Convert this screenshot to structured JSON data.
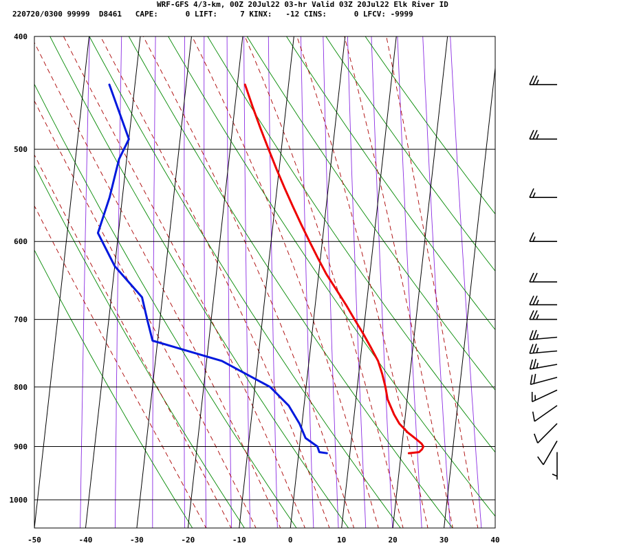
{
  "header": {
    "line1": "WRF-GFS 4/3-km, 00Z 20Jul22 03-hr Valid 03Z 20Jul22 Elk River ID",
    "line2": "220720/0300 99999  D8461   CAPE:      0 LIFT:     7 KINX:   -12 CINS:      0 LFCV: -9999"
  },
  "colors": {
    "temperature": "#ee0000",
    "dewpoint": "#0018dd",
    "dry_adiabat": "#008800",
    "moist_adiabat": "#aa0000",
    "mixing_ratio": "#8a2be2",
    "grid": "#000000"
  },
  "chart_data": {
    "type": "line",
    "subtype": "skew-t log-p sounding",
    "x_axis": {
      "range": [
        -50,
        40
      ],
      "ticks": [
        -50,
        -40,
        -30,
        -20,
        -10,
        0,
        10,
        20,
        30,
        40
      ],
      "tick_labels": [
        "-50",
        "-40",
        "-30",
        "-20",
        "-10",
        "0",
        "10",
        "20",
        "30",
        "40"
      ]
    },
    "y_axis": {
      "scale": "log",
      "range": [
        1040,
        400
      ],
      "ticks": [
        400,
        500,
        600,
        700,
        800,
        900,
        1000
      ],
      "tick_labels": [
        "400",
        "500",
        "600",
        "700",
        "800",
        "900",
        "1000"
      ]
    },
    "grid": true,
    "dry_adiabats_theta_K": [
      250,
      260,
      270,
      280,
      290,
      300,
      310,
      320,
      330,
      340,
      350,
      360
    ],
    "moist_adiabats_thetaw_C": [
      -20,
      -15,
      -10,
      -5,
      0,
      5,
      10,
      15,
      20,
      25,
      30,
      35
    ],
    "mixing_ratio_lines_gkg": [
      0.1,
      0.2,
      0.4,
      0.7,
      1,
      1.5,
      2,
      3,
      5,
      7,
      10,
      14,
      20,
      28,
      40
    ],
    "series": [
      {
        "key": "temperature",
        "p": [
          912,
          910,
          905,
          900,
          895,
          888,
          875,
          860,
          845,
          820,
          800,
          780,
          760,
          740,
          720,
          700,
          680,
          660,
          640,
          620,
          600,
          580,
          560,
          540,
          520,
          500,
          480,
          460,
          440
        ],
        "t": [
          21.5,
          23.5,
          24.0,
          24.2,
          23.8,
          22.8,
          20.8,
          19.0,
          17.8,
          16.2,
          15.5,
          14.6,
          13.5,
          11.8,
          10.0,
          8.0,
          6.0,
          3.8,
          1.5,
          -0.5,
          -2.5,
          -4.5,
          -6.5,
          -8.5,
          -10.5,
          -12.5,
          -14.5,
          -16.5,
          -18.5
        ]
      },
      {
        "key": "dewpoint",
        "p": [
          912,
          910,
          900,
          885,
          860,
          830,
          800,
          760,
          730,
          700,
          670,
          630,
          590,
          550,
          510,
          490,
          440
        ],
        "t": [
          5.5,
          4.0,
          3.5,
          1.0,
          -0.5,
          -3.0,
          -7.0,
          -17.0,
          -31.0,
          -32.5,
          -34.0,
          -40.0,
          -44.0,
          -42.5,
          -41.5,
          -40.0,
          -45.0
        ]
      }
    ],
    "wind_barbs": [
      {
        "p": 440,
        "spd_kt": 25,
        "dir_deg": 270
      },
      {
        "p": 490,
        "spd_kt": 25,
        "dir_deg": 270
      },
      {
        "p": 550,
        "spd_kt": 15,
        "dir_deg": 270
      },
      {
        "p": 600,
        "spd_kt": 15,
        "dir_deg": 270
      },
      {
        "p": 650,
        "spd_kt": 20,
        "dir_deg": 270
      },
      {
        "p": 680,
        "spd_kt": 25,
        "dir_deg": 270
      },
      {
        "p": 700,
        "spd_kt": 25,
        "dir_deg": 270
      },
      {
        "p": 725,
        "spd_kt": 25,
        "dir_deg": 265
      },
      {
        "p": 745,
        "spd_kt": 25,
        "dir_deg": 265
      },
      {
        "p": 765,
        "spd_kt": 25,
        "dir_deg": 260
      },
      {
        "p": 785,
        "spd_kt": 20,
        "dir_deg": 255
      },
      {
        "p": 805,
        "spd_kt": 15,
        "dir_deg": 245
      },
      {
        "p": 830,
        "spd_kt": 10,
        "dir_deg": 235
      },
      {
        "p": 860,
        "spd_kt": 10,
        "dir_deg": 225
      },
      {
        "p": 890,
        "spd_kt": 10,
        "dir_deg": 210
      },
      {
        "p": 910,
        "spd_kt": 5,
        "dir_deg": 180
      }
    ]
  }
}
